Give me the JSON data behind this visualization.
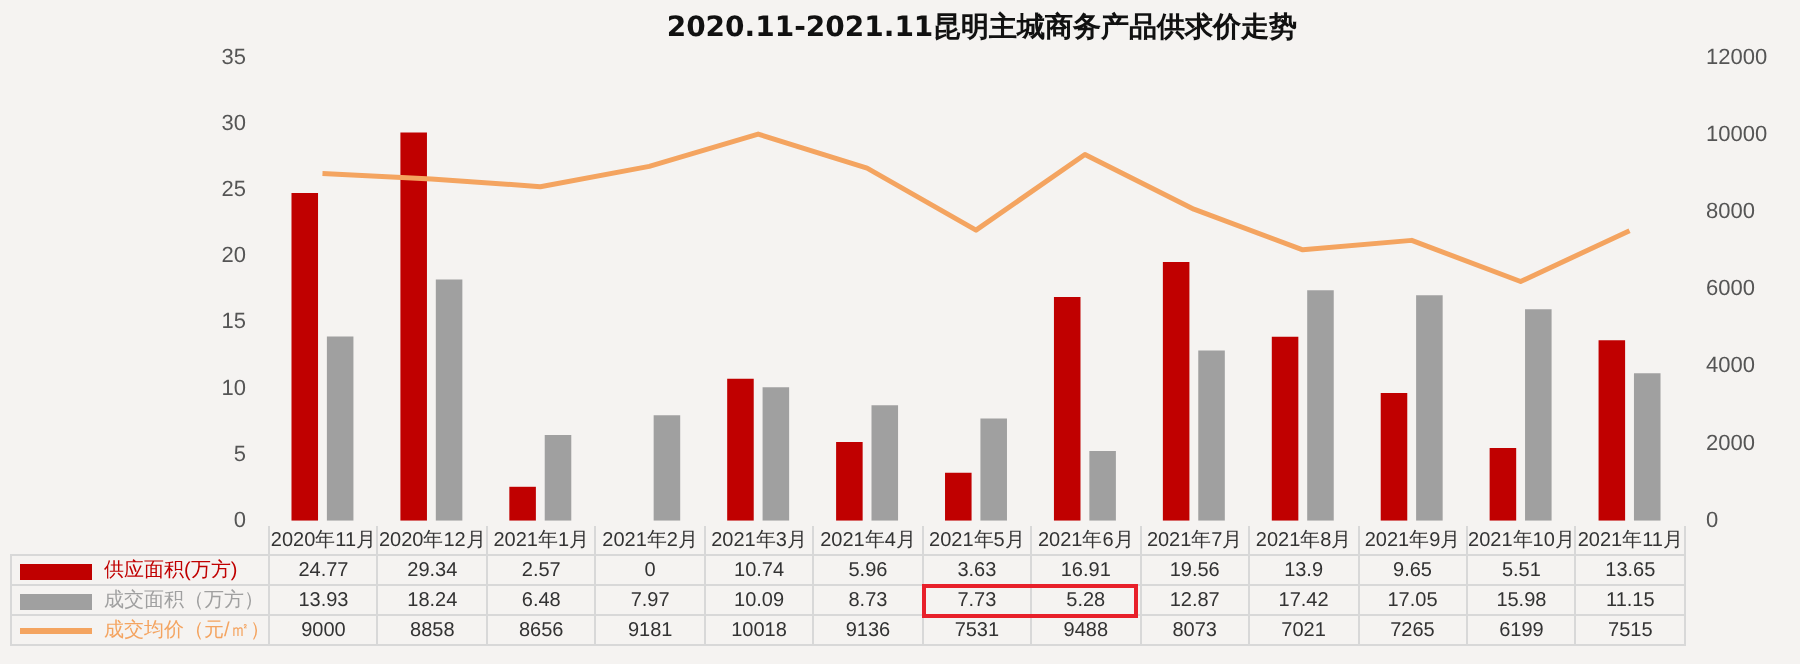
{
  "chart_data": {
    "type": "bar",
    "title": "2020.11-2021.11昆明主城商务产品供求价走势",
    "categories": [
      "2020年11月",
      "2020年12月",
      "2021年1月",
      "2021年2月",
      "2021年3月",
      "2021年4月",
      "2021年5月",
      "2021年6月",
      "2021年7月",
      "2021年8月",
      "2021年9月",
      "2021年10月",
      "2021年11月"
    ],
    "series": [
      {
        "name": "供应面积(万方)",
        "color": "#c00000",
        "values": [
          24.77,
          29.34,
          2.57,
          0,
          10.74,
          5.96,
          3.63,
          16.91,
          19.56,
          13.9,
          9.65,
          5.51,
          13.65
        ]
      },
      {
        "name": "成交面积（万方）",
        "color": "#a0a0a0",
        "values": [
          13.93,
          18.24,
          6.48,
          7.97,
          10.09,
          8.73,
          7.73,
          5.28,
          12.87,
          17.42,
          17.05,
          15.98,
          11.15
        ]
      },
      {
        "name": "成交均价（元/㎡）",
        "type": "line",
        "axis": "y2",
        "color": "#f4a460",
        "values": [
          9000,
          8858,
          8656,
          9181,
          10018,
          9136,
          7531,
          9488,
          8073,
          7021,
          7265,
          6199,
          7515
        ]
      }
    ],
    "ylim": [
      0,
      35
    ],
    "yticks": [
      0,
      5,
      10,
      15,
      20,
      25,
      30,
      35
    ],
    "y2lim": [
      0,
      12000
    ],
    "y2ticks": [
      0,
      2000,
      4000,
      6000,
      8000,
      10000,
      12000
    ],
    "grid": false,
    "legend": "bottom",
    "marker": "none",
    "line_style": "solid",
    "data_labels": true
  }
}
